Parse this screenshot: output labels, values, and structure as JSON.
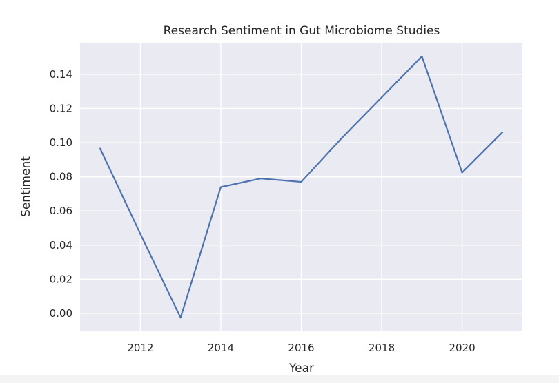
{
  "chart_data": {
    "type": "line",
    "title": "Research Sentiment in Gut Microbiome Studies",
    "xlabel": "Year",
    "ylabel": "Sentiment",
    "x": [
      2011,
      2012,
      2013,
      2014,
      2015,
      2016,
      2017,
      2018,
      2019,
      2020,
      2021
    ],
    "series": [
      {
        "values": [
          0.0965,
          0.0465,
          -0.0025,
          0.074,
          0.079,
          0.077,
          0.1025,
          0.1265,
          0.1505,
          0.0825,
          0.106
        ]
      }
    ],
    "xlim": [
      2010.5,
      2021.5
    ],
    "ylim": [
      -0.0105,
      0.1585
    ],
    "xticks": [
      2012,
      2014,
      2016,
      2018,
      2020
    ],
    "xtick_labels": [
      "2012",
      "2014",
      "2016",
      "2018",
      "2020"
    ],
    "yticks": [
      0.0,
      0.02,
      0.04,
      0.06,
      0.08,
      0.1,
      0.12,
      0.14
    ],
    "ytick_labels": [
      "0.00",
      "0.02",
      "0.04",
      "0.06",
      "0.08",
      "0.10",
      "0.12",
      "0.14"
    ],
    "grid": true,
    "style": "seaborn-darkgrid",
    "colors": {
      "plot_background": "#eaeaf2",
      "grid": "#ffffff",
      "line": "#4c72b0"
    }
  }
}
